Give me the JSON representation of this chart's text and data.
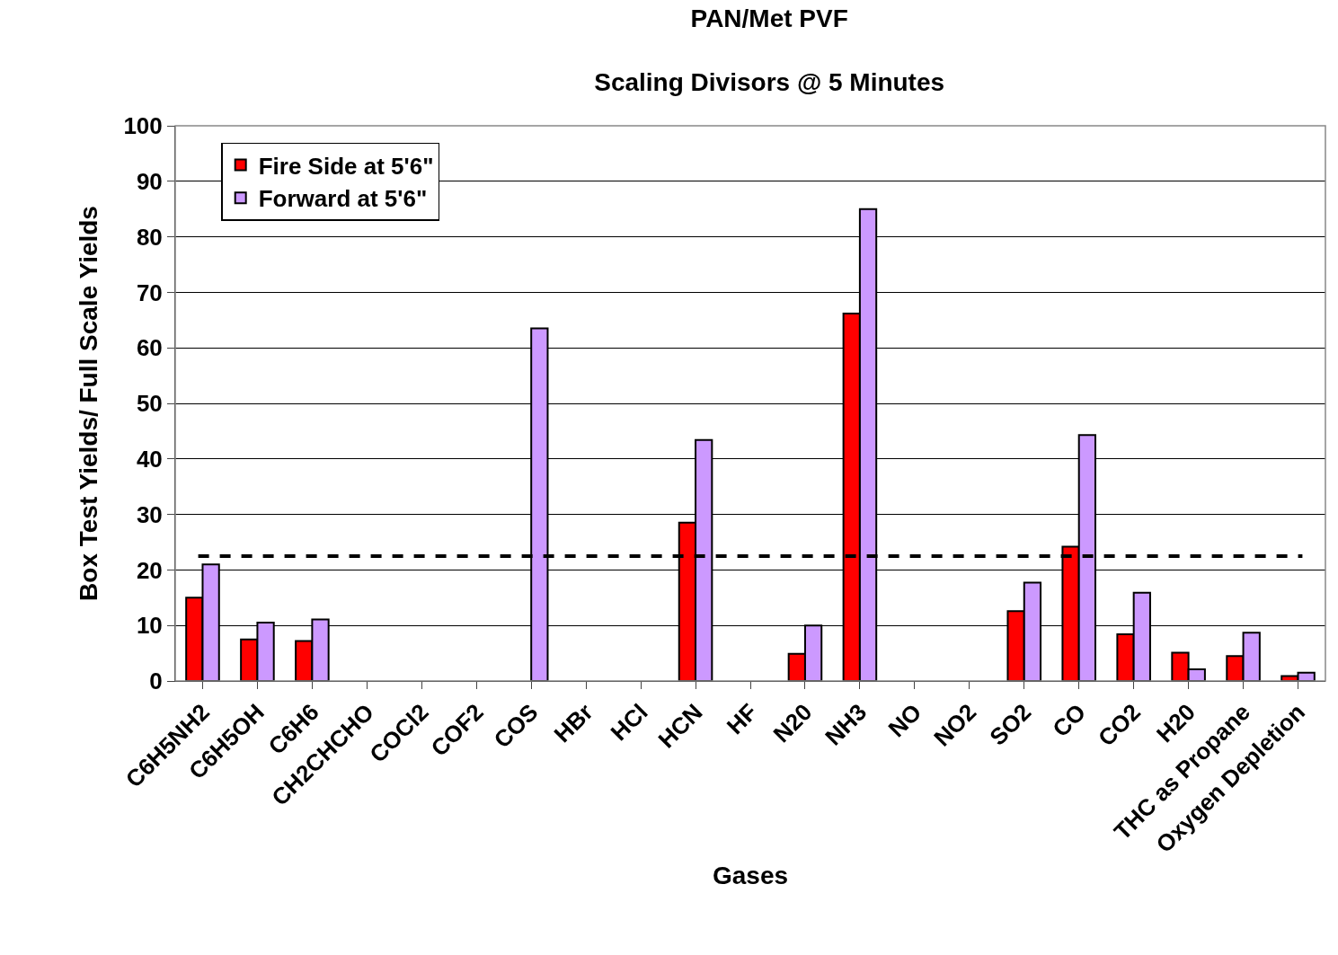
{
  "chart_data": {
    "type": "bar",
    "title": "PAN/Met PVF",
    "subtitle": "Scaling Divisors @ 5 Minutes",
    "xlabel": "Gases",
    "ylabel": "Box Test Yields/ Full Scale Yields",
    "categories": [
      "C6H5NH2",
      "C6H5OH",
      "C6H6",
      "CH2CHCHO",
      "COCl2",
      "COF2",
      "COS",
      "HBr",
      "HCl",
      "HCN",
      "HF",
      "N20",
      "NH3",
      "NO",
      "NO2",
      "SO2",
      "CO",
      "CO2",
      "H20",
      "THC as Propane",
      "Oxygen Depletion"
    ],
    "series": [
      {
        "name": "Fire Side at 5'6\"",
        "color": "#ff0000",
        "values": [
          15,
          7.5,
          7.2,
          0,
          0,
          0,
          0,
          0,
          0,
          28.5,
          0,
          4.9,
          66.2,
          0,
          0,
          12.6,
          24.2,
          8.4,
          5.1,
          4.5,
          0.9
        ]
      },
      {
        "name": "Forward at 5'6\"",
        "color": "#cc99ff",
        "values": [
          21,
          10.5,
          11.1,
          0,
          0,
          0,
          63.5,
          0,
          0,
          43.4,
          0,
          10,
          85,
          0,
          0,
          17.7,
          44.3,
          15.9,
          2.1,
          8.7,
          1.5
        ]
      }
    ],
    "ylim": [
      0,
      100
    ],
    "yticks": [
      0,
      10,
      20,
      30,
      40,
      50,
      60,
      70,
      80,
      90,
      100
    ],
    "grid": "y",
    "legend": "top left",
    "ref_lines": [
      {
        "axis": "y",
        "value": 22.5,
        "color": "#000000",
        "line_style": "dashed"
      }
    ]
  }
}
